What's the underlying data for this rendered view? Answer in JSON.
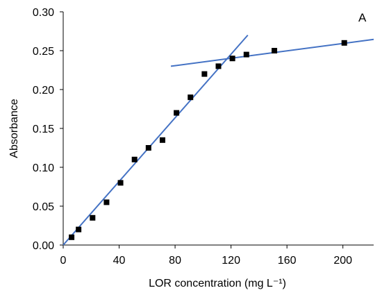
{
  "chart_data": {
    "type": "scatter",
    "panel_label": "A",
    "xlabel": "LOR concentration (mg L⁻¹)",
    "ylabel": "Absorbance",
    "xlim": [
      0,
      222
    ],
    "ylim": [
      0,
      0.3
    ],
    "x_ticks": [
      0,
      40,
      80,
      120,
      160,
      200
    ],
    "x_tick_labels": [
      "0",
      "40",
      "80",
      "120",
      "160",
      "200"
    ],
    "y_ticks": [
      0.0,
      0.05,
      0.1,
      0.15,
      0.2,
      0.25,
      0.3
    ],
    "y_tick_labels": [
      "0.00",
      "0.05",
      "0.10",
      "0.15",
      "0.20",
      "0.25",
      "0.30"
    ],
    "grid": false,
    "legend": "none",
    "series": [
      {
        "marker": "square",
        "color": "#000000",
        "points": [
          [
            6,
            0.01
          ],
          [
            11,
            0.02
          ],
          [
            21,
            0.035
          ],
          [
            31,
            0.055
          ],
          [
            41,
            0.08
          ],
          [
            51,
            0.11
          ],
          [
            61,
            0.125
          ],
          [
            71,
            0.135
          ],
          [
            81,
            0.17
          ],
          [
            91,
            0.19
          ],
          [
            101,
            0.22
          ],
          [
            111,
            0.23
          ],
          [
            121,
            0.24
          ],
          [
            131,
            0.245
          ],
          [
            151,
            0.25
          ],
          [
            201,
            0.26
          ]
        ]
      }
    ],
    "fit_lines": [
      {
        "color": "#4472C4",
        "points": [
          [
            0,
            0.0
          ],
          [
            132,
            0.27
          ]
        ]
      },
      {
        "color": "#4472C4",
        "points": [
          [
            77,
            0.23
          ],
          [
            222,
            0.2645
          ]
        ]
      }
    ]
  }
}
